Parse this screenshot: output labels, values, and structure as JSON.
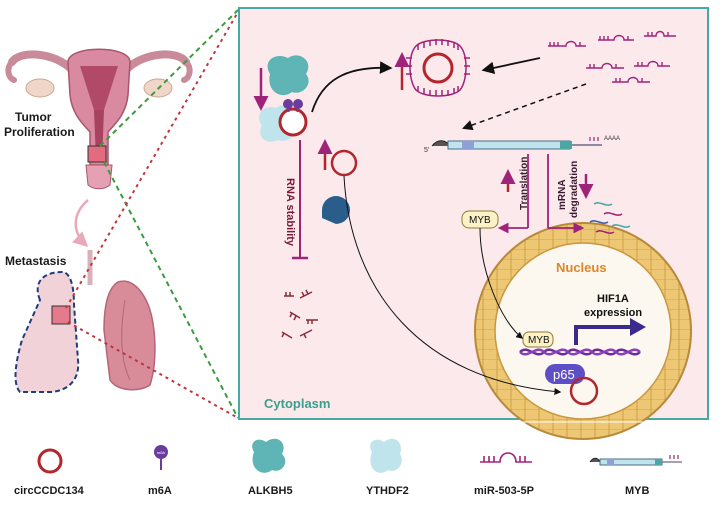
{
  "left": {
    "tumor_label_line1": "Tumor",
    "tumor_label_line2": "Proliferation",
    "metastasis_label": "Metastasis"
  },
  "panel": {
    "cytoplasm_label": "Cytoplasm",
    "nucleus_label": "Nucleus",
    "rna_stability_label": "RNA stability",
    "translation_label": "Translation",
    "mrna_degradation_line1": "mRNA",
    "mrna_degradation_line2": "degradation",
    "myb_label": "MYB",
    "myb_nucleus_label": "MYB",
    "p65_label": "p65",
    "hif1a_line1": "HIF1A",
    "hif1a_line2": "expression",
    "m6a_short": "m6A",
    "poly_a": "AAAA",
    "five_prime": "5'"
  },
  "legend": {
    "items": [
      {
        "label": "circCCDC134"
      },
      {
        "label": "m6A"
      },
      {
        "label": "ALKBH5"
      },
      {
        "label": "YTHDF2"
      },
      {
        "label": "miR-503-5P"
      },
      {
        "label": "MYB"
      }
    ]
  },
  "colors": {
    "panel_bg": "#fbe9ec",
    "panel_border": "#4aa8a4",
    "circ_red": "#b3262d",
    "magenta": "#a0237a",
    "teal": "#5fb4b6",
    "light_teal": "#bfe4ec",
    "nucleus": "#edc774",
    "dna_purple": "#6b2c9e",
    "p65": "#5e4fc6",
    "myb_box": "#fdf2c6",
    "cytoplasm_text": "#3aa08d",
    "nucleus_text": "#e0852a"
  }
}
